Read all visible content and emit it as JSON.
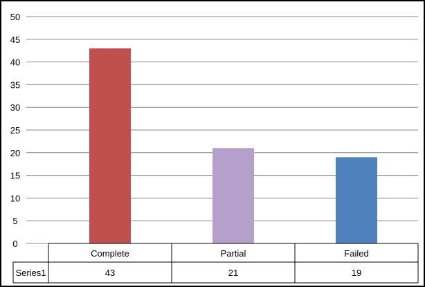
{
  "chart_data": {
    "type": "bar",
    "categories": [
      "Complete",
      "Partial",
      "Failed"
    ],
    "series": [
      {
        "name": "Series1",
        "values": [
          43,
          21,
          19
        ]
      }
    ],
    "bar_colors": [
      "#C0504D",
      "#B4A0CB",
      "#4F81BD"
    ],
    "ylim": [
      0,
      50
    ],
    "yticks": [
      "0",
      "5",
      "10",
      "15",
      "20",
      "25",
      "30",
      "35",
      "40",
      "45",
      "50"
    ],
    "grid": true,
    "data_table": true,
    "value_labels": [
      "43",
      "21",
      "19"
    ]
  }
}
